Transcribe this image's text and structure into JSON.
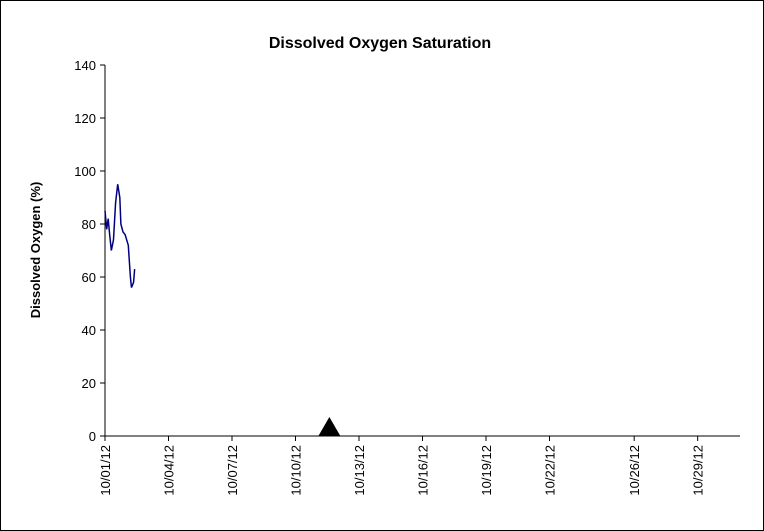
{
  "chart_data": {
    "type": "line",
    "title": "Dissolved Oxygen Saturation",
    "y_label": "Dissolved Oxygen (%)",
    "series": [
      {
        "color": "#000080",
        "x": [
          0,
          0.08,
          0.15,
          0.22,
          0.3,
          0.4,
          0.5,
          0.6,
          0.7,
          0.75,
          0.85,
          0.95,
          1.1,
          1.2,
          1.25,
          1.35,
          1.4
        ],
        "values": [
          85,
          78,
          82,
          76,
          70,
          74,
          88,
          95,
          90,
          80,
          77,
          76,
          72,
          60,
          56,
          58,
          63
        ]
      }
    ],
    "event_marker": {
      "x": 10.6,
      "y": 0,
      "color": "#000000"
    },
    "xlim": [
      0,
      30
    ],
    "xticks": [
      {
        "value": 0,
        "label": "10/01/12"
      },
      {
        "value": 3,
        "label": "10/04/12"
      },
      {
        "value": 6,
        "label": "10/07/12"
      },
      {
        "value": 9,
        "label": "10/10/12"
      },
      {
        "value": 12,
        "label": "10/13/12"
      },
      {
        "value": 15,
        "label": "10/16/12"
      },
      {
        "value": 18,
        "label": "10/19/12"
      },
      {
        "value": 21,
        "label": "10/22/12"
      },
      {
        "value": 25,
        "label": "10/26/12"
      },
      {
        "value": 28,
        "label": "10/29/12"
      }
    ],
    "ylim": [
      0,
      140
    ],
    "yticks": [
      0,
      20,
      40,
      60,
      80,
      100,
      120,
      140
    ]
  }
}
